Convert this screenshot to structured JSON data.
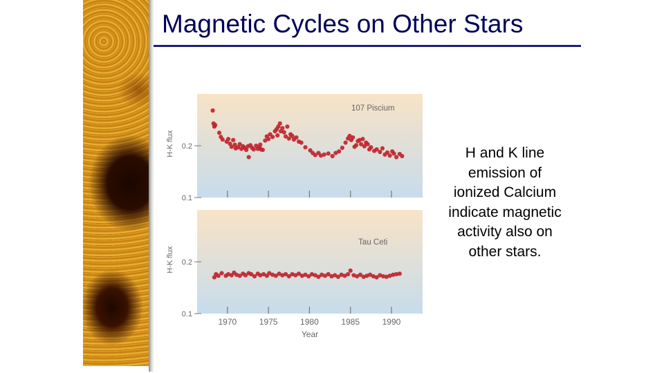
{
  "slide": {
    "title": "Magnetic Cycles on Other Stars",
    "caption_lines": [
      "H and K line",
      "emission of",
      "ionized Calcium",
      "indicate magnetic",
      "activity also on",
      "other stars."
    ]
  },
  "chart_data": [
    {
      "type": "scatter",
      "title": "107 Piscium",
      "xlabel": "",
      "ylabel": "H-K flux",
      "xlim": [
        1966.3,
        1993.8
      ],
      "ylim": [
        0.1,
        0.3
      ],
      "yticks": [
        0.1,
        0.2
      ],
      "xticks": [
        1970,
        1975,
        1980,
        1985,
        1990
      ],
      "xtick_labels_shown": false,
      "grid": false,
      "marker_color": "#c0252d",
      "background_gradient": [
        "#f8e3c6",
        "#c7dcec"
      ],
      "series": [
        {
          "x": [
            1968.2,
            1968.3,
            1968.4,
            1968.5,
            1969.0,
            1969.2,
            1969.4,
            1969.9,
            1970.1,
            1970.3,
            1970.5,
            1970.7,
            1970.9,
            1971.0,
            1971.3,
            1971.5,
            1971.7,
            1971.9,
            1972.1,
            1972.3,
            1972.5,
            1972.6,
            1972.8,
            1973.0,
            1973.2,
            1973.5,
            1973.7,
            1973.9,
            1974.0,
            1974.1,
            1974.3,
            1974.6,
            1974.8,
            1975.0,
            1975.2,
            1975.5,
            1975.8,
            1976.0,
            1976.1,
            1976.2,
            1976.4,
            1976.5,
            1976.7,
            1976.9,
            1977.1,
            1977.3,
            1977.5,
            1977.7,
            1977.9,
            1978.1,
            1978.4,
            1978.7,
            1979.0,
            1979.5,
            1980.1,
            1980.4,
            1980.7,
            1981.1,
            1981.4,
            1981.8,
            1982.3,
            1982.8,
            1983.2,
            1983.6,
            1984.0,
            1984.4,
            1984.7,
            1984.9,
            1985.1,
            1985.3,
            1985.5,
            1985.7,
            1985.9,
            1986.1,
            1986.3,
            1986.5,
            1986.7,
            1986.9,
            1987.1,
            1987.3,
            1987.5,
            1987.9,
            1988.2,
            1988.6,
            1988.9,
            1989.2,
            1989.5,
            1989.8,
            1990.1,
            1990.3,
            1990.6,
            1991.0,
            1991.3
          ],
          "y": [
            0.268,
            0.243,
            0.237,
            0.24,
            0.225,
            0.217,
            0.212,
            0.208,
            0.213,
            0.204,
            0.198,
            0.211,
            0.202,
            0.195,
            0.197,
            0.203,
            0.194,
            0.199,
            0.196,
            0.192,
            0.199,
            0.178,
            0.201,
            0.196,
            0.193,
            0.2,
            0.194,
            0.197,
            0.202,
            0.193,
            0.192,
            0.21,
            0.218,
            0.213,
            0.222,
            0.217,
            0.228,
            0.232,
            0.22,
            0.237,
            0.243,
            0.228,
            0.234,
            0.226,
            0.218,
            0.237,
            0.214,
            0.222,
            0.219,
            0.212,
            0.216,
            0.208,
            0.206,
            0.197,
            0.191,
            0.186,
            0.182,
            0.186,
            0.181,
            0.183,
            0.185,
            0.18,
            0.186,
            0.189,
            0.196,
            0.206,
            0.214,
            0.219,
            0.211,
            0.216,
            0.198,
            0.201,
            0.209,
            0.211,
            0.203,
            0.213,
            0.199,
            0.206,
            0.203,
            0.193,
            0.197,
            0.19,
            0.193,
            0.188,
            0.195,
            0.183,
            0.187,
            0.181,
            0.189,
            0.185,
            0.178,
            0.184,
            0.18
          ]
        }
      ]
    },
    {
      "type": "scatter",
      "title": "Tau Ceti",
      "xlabel": "Year",
      "ylabel": "H-K flux",
      "xlim": [
        1966.3,
        1993.8
      ],
      "ylim": [
        0.1,
        0.3
      ],
      "yticks": [
        0.1,
        0.2
      ],
      "xticks": [
        1970,
        1975,
        1980,
        1985,
        1990
      ],
      "xtick_labels_shown": true,
      "grid": false,
      "marker_color": "#c0252d",
      "background_gradient": [
        "#f8e3c6",
        "#c7dcec"
      ],
      "series": [
        {
          "x": [
            1968.4,
            1968.6,
            1968.9,
            1969.3,
            1969.8,
            1970.1,
            1970.5,
            1970.8,
            1971.1,
            1971.5,
            1971.9,
            1972.2,
            1972.6,
            1972.9,
            1973.3,
            1973.7,
            1974.0,
            1974.4,
            1974.8,
            1975.1,
            1975.5,
            1975.9,
            1976.3,
            1976.7,
            1977.1,
            1977.5,
            1977.9,
            1978.3,
            1978.7,
            1979.1,
            1979.5,
            1979.9,
            1980.3,
            1980.7,
            1981.1,
            1981.5,
            1981.9,
            1982.3,
            1982.7,
            1983.1,
            1983.5,
            1983.9,
            1984.3,
            1984.7,
            1985.0,
            1985.4,
            1985.8,
            1986.2,
            1986.6,
            1987.0,
            1987.4,
            1987.8,
            1988.2,
            1988.6,
            1989.0,
            1989.4,
            1989.8,
            1990.2,
            1990.6,
            1991.0
          ],
          "y": [
            0.17,
            0.176,
            0.173,
            0.178,
            0.173,
            0.176,
            0.174,
            0.179,
            0.175,
            0.173,
            0.177,
            0.174,
            0.178,
            0.176,
            0.172,
            0.177,
            0.174,
            0.176,
            0.173,
            0.178,
            0.175,
            0.173,
            0.177,
            0.174,
            0.176,
            0.172,
            0.176,
            0.174,
            0.177,
            0.173,
            0.175,
            0.172,
            0.176,
            0.174,
            0.171,
            0.175,
            0.173,
            0.176,
            0.172,
            0.174,
            0.171,
            0.175,
            0.173,
            0.176,
            0.183,
            0.174,
            0.172,
            0.175,
            0.171,
            0.173,
            0.175,
            0.172,
            0.17,
            0.174,
            0.172,
            0.171,
            0.173,
            0.175,
            0.176,
            0.177
          ]
        }
      ]
    }
  ]
}
